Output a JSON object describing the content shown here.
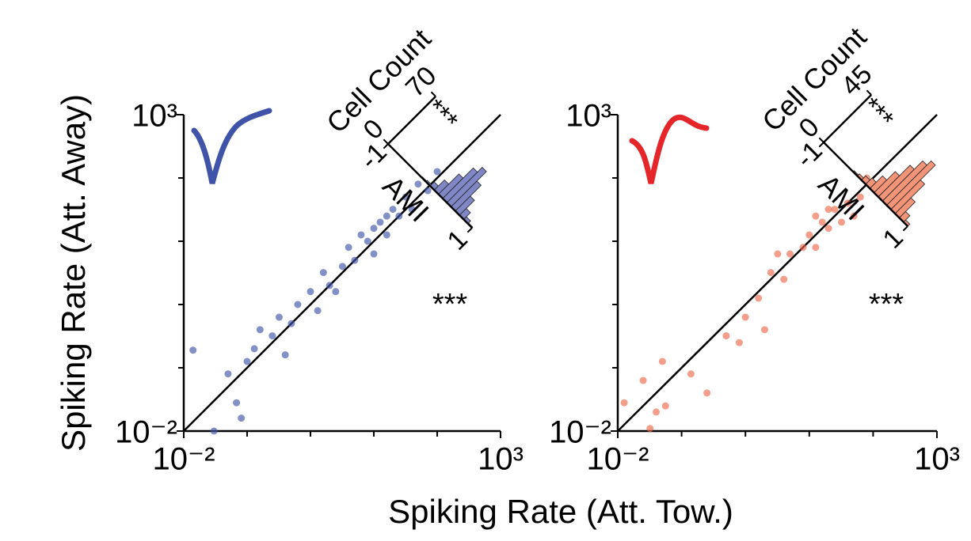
{
  "xlabel": "Spiking Rate (Att. Tow.)",
  "ylabel": "Spiking Rate (Att. Away)",
  "chart_data": [
    {
      "type": "scatter",
      "log": true,
      "identity_line": true,
      "color": "#3f54a8",
      "annotation": "***",
      "xlim": [
        0.01,
        1000
      ],
      "ylim": [
        0.01,
        1000
      ],
      "xticks": [
        {
          "value": 0.01,
          "label": "10⁻²"
        },
        {
          "value": 1000,
          "label": "10³"
        }
      ],
      "yticks": [
        {
          "value": 0.01,
          "label": "10⁻²"
        },
        {
          "value": 1000,
          "label": "10³"
        }
      ],
      "minor_ticks": [
        0.1,
        1,
        10,
        100
      ],
      "x": [
        0.014,
        0.03,
        0.081,
        0.068,
        0.05,
        0.13,
        0.16,
        0.25,
        0.32,
        0.5,
        0.63,
        1,
        1.3,
        1.6,
        2,
        3.2,
        4,
        5,
        6.3,
        8,
        10,
        12.6,
        16,
        20,
        25,
        32,
        40,
        50,
        71,
        100,
        2.5,
        0.4,
        16,
        10,
        0.1
      ],
      "y": [
        0.19,
        0.01,
        0.016,
        0.028,
        0.08,
        0.2,
        0.4,
        0.32,
        0.63,
        0.5,
        1,
        1.6,
        0.8,
        3.2,
        2,
        4,
        8,
        5,
        12.6,
        10,
        16,
        20,
        12.6,
        32,
        25,
        50,
        32,
        80,
        63,
        126,
        1.6,
        0.16,
        25,
        6.3,
        0.126
      ],
      "inset": {
        "type": "histogram",
        "color": "#7f87c6",
        "xlabel": "AMI",
        "ylabel": "Cell Count",
        "annotation": "***",
        "xlim": [
          -1,
          1
        ],
        "xticks": [
          -1,
          1
        ],
        "ylim": [
          0,
          70
        ],
        "yticks": [
          0,
          70
        ],
        "bins": [
          -1,
          -0.9,
          -0.8,
          -0.7,
          -0.6,
          -0.5,
          -0.4,
          -0.3,
          -0.2,
          -0.1,
          0,
          0.1,
          0.2,
          0.3,
          0.4,
          0.5,
          0.6,
          0.7,
          0.8,
          0.9,
          1
        ],
        "counts": [
          0,
          0,
          0,
          0,
          0,
          0,
          0,
          0,
          1,
          2,
          6,
          15,
          30,
          45,
          52,
          38,
          22,
          10,
          4,
          1
        ]
      }
    },
    {
      "type": "scatter",
      "log": true,
      "identity_line": true,
      "color": "#ec6a4c",
      "annotation": "***",
      "xlim": [
        0.01,
        1000
      ],
      "ylim": [
        0.01,
        1000
      ],
      "xticks": [
        {
          "value": 0.01,
          "label": "10⁻²"
        },
        {
          "value": 1000,
          "label": "10³"
        }
      ],
      "yticks": [
        {
          "value": 0.01,
          "label": "10⁻²"
        },
        {
          "value": 1000,
          "label": "10³"
        }
      ],
      "minor_ticks": [
        0.1,
        1,
        10,
        100
      ],
      "x": [
        0.0126,
        0.04,
        0.056,
        0.05,
        0.14,
        0.25,
        0.5,
        0.8,
        1,
        1.6,
        2,
        2.5,
        4,
        5,
        8,
        10,
        12.6,
        16,
        20,
        25,
        32,
        40,
        50,
        63,
        80,
        20,
        12.6,
        3.2,
        0.032,
        0.025
      ],
      "y": [
        0.028,
        0.02,
        0.025,
        0.126,
        0.08,
        0.04,
        0.32,
        0.25,
        0.63,
        1.26,
        0.4,
        3.2,
        2.5,
        6.3,
        8,
        12.6,
        8,
        20,
        16,
        32,
        20,
        40,
        25,
        50,
        100,
        32,
        25,
        6.3,
        0.011,
        0.063
      ],
      "inset": {
        "type": "histogram",
        "color": "#f29477",
        "xlabel": "AMI",
        "ylabel": "Cell Count",
        "annotation": "***",
        "xlim": [
          -1,
          1
        ],
        "xticks": [
          -1,
          1
        ],
        "ylim": [
          0,
          45
        ],
        "yticks": [
          0,
          45
        ],
        "bins": [
          -1,
          -0.9,
          -0.8,
          -0.7,
          -0.6,
          -0.5,
          -0.4,
          -0.3,
          -0.2,
          -0.1,
          0,
          0.1,
          0.2,
          0.3,
          0.4,
          0.5,
          0.6,
          0.7,
          0.8,
          0.9,
          1
        ],
        "counts": [
          0,
          0,
          0,
          0,
          0,
          0,
          0,
          1,
          2,
          4,
          6,
          12,
          20,
          30,
          38,
          42,
          28,
          15,
          6,
          2
        ]
      }
    }
  ]
}
